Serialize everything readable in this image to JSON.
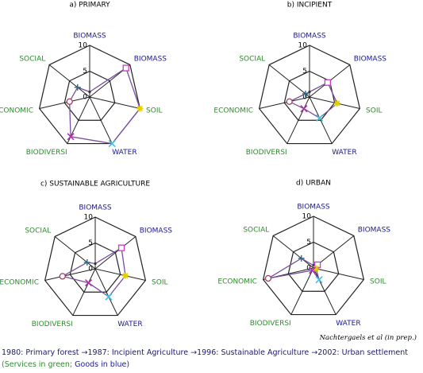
{
  "chart_data": [
    {
      "type": "radar",
      "title": "a) PRIMARY",
      "axes": [
        "BIOMASS",
        "BIOMASS",
        "SOIL",
        "WATER",
        "BIODIVERSI",
        "ECONOMIC",
        "SOCIAL"
      ],
      "label_colors": [
        "#1a1a8c",
        "#1a1a8c",
        "#2e8b2e",
        "#1a1a8c",
        "#2e8b2e",
        "#2e8b2e",
        "#2e8b2e"
      ],
      "marker_colors": [
        "#333333",
        "#c040c0",
        "#e0d000",
        "#40c0e0",
        "#b030b0",
        "#a04060",
        "#207080"
      ],
      "rlim": [
        0,
        10
      ],
      "rticks": [
        0,
        5,
        10
      ],
      "series": [
        {
          "color": "#7a4f9f",
          "values": [
            1,
            9,
            10,
            10,
            8.5,
            4,
            3
          ]
        }
      ]
    },
    {
      "type": "radar",
      "title": "b) INCIPIENT",
      "axes": [
        "BIOMASS",
        "BIOMASS",
        "SOIL",
        "WATER",
        "BIODIVERSI",
        "ECONOMIC",
        "SOCIAL"
      ],
      "label_colors": [
        "#1a1a8c",
        "#1a1a8c",
        "#2e8b2e",
        "#1a1a8c",
        "#2e8b2e",
        "#2e8b2e",
        "#2e8b2e"
      ],
      "marker_colors": [
        "#333333",
        "#c040c0",
        "#e0d000",
        "#40c0e0",
        "#b030b0",
        "#a04060",
        "#207080"
      ],
      "rlim": [
        0,
        10
      ],
      "rticks": [
        0,
        5,
        10
      ],
      "series": [
        {
          "color": "#7a4f9f",
          "values": [
            1,
            4.5,
            5.5,
            4.5,
            2.5,
            4,
            1
          ]
        }
      ]
    },
    {
      "type": "radar",
      "title": "c) SUSTAINABLE AGRICULTURE",
      "axes": [
        "BIOMASS",
        "BIOMASS",
        "SOIL",
        "WATER",
        "BIODIVERSI",
        "ECONOMIC",
        "SOCIAL"
      ],
      "label_colors": [
        "#1a1a8c",
        "#1a1a8c",
        "#2e8b2e",
        "#1a1a8c",
        "#2e8b2e",
        "#2e8b2e",
        "#2e8b2e"
      ],
      "marker_colors": [
        "#333333",
        "#c040c0",
        "#e0d000",
        "#40c0e0",
        "#b030b0",
        "#a04060",
        "#207080"
      ],
      "rlim": [
        0,
        10
      ],
      "rticks": [
        0,
        5,
        10
      ],
      "series": [
        {
          "color": "#7a4f9f",
          "values": [
            1,
            6.5,
            6,
            6,
            3,
            6.5,
            2
          ]
        }
      ]
    },
    {
      "type": "radar",
      "title": "d) URBAN",
      "axes": [
        "BIOMASS",
        "BIOMASS",
        "SOIL",
        "WATER",
        "BIODIVERSI",
        "ECONOMIC",
        "SOCIAL"
      ],
      "label_colors": [
        "#1a1a8c",
        "#1a1a8c",
        "#2e8b2e",
        "#1a1a8c",
        "#2e8b2e",
        "#2e8b2e",
        "#2e8b2e"
      ],
      "marker_colors": [
        "#333333",
        "#c040c0",
        "#e0d000",
        "#40c0e0",
        "#b030b0",
        "#a04060",
        "#207080"
      ],
      "rlim": [
        0,
        10
      ],
      "rticks": [
        0,
        5,
        10
      ],
      "series": [
        {
          "color": "#7a4f9f",
          "values": [
            0.5,
            1,
            0.5,
            2.5,
            0.5,
            9,
            3
          ]
        }
      ]
    }
  ],
  "source": "Nachtergaels et al (in prep.)",
  "caption": {
    "text": "1980: Primary forest →1987: Incipient Agriculture →1996: Sustainable Agriculture →2002: Urban settlement",
    "services": "(Services in green;",
    "goods": "Goods in blue)"
  }
}
